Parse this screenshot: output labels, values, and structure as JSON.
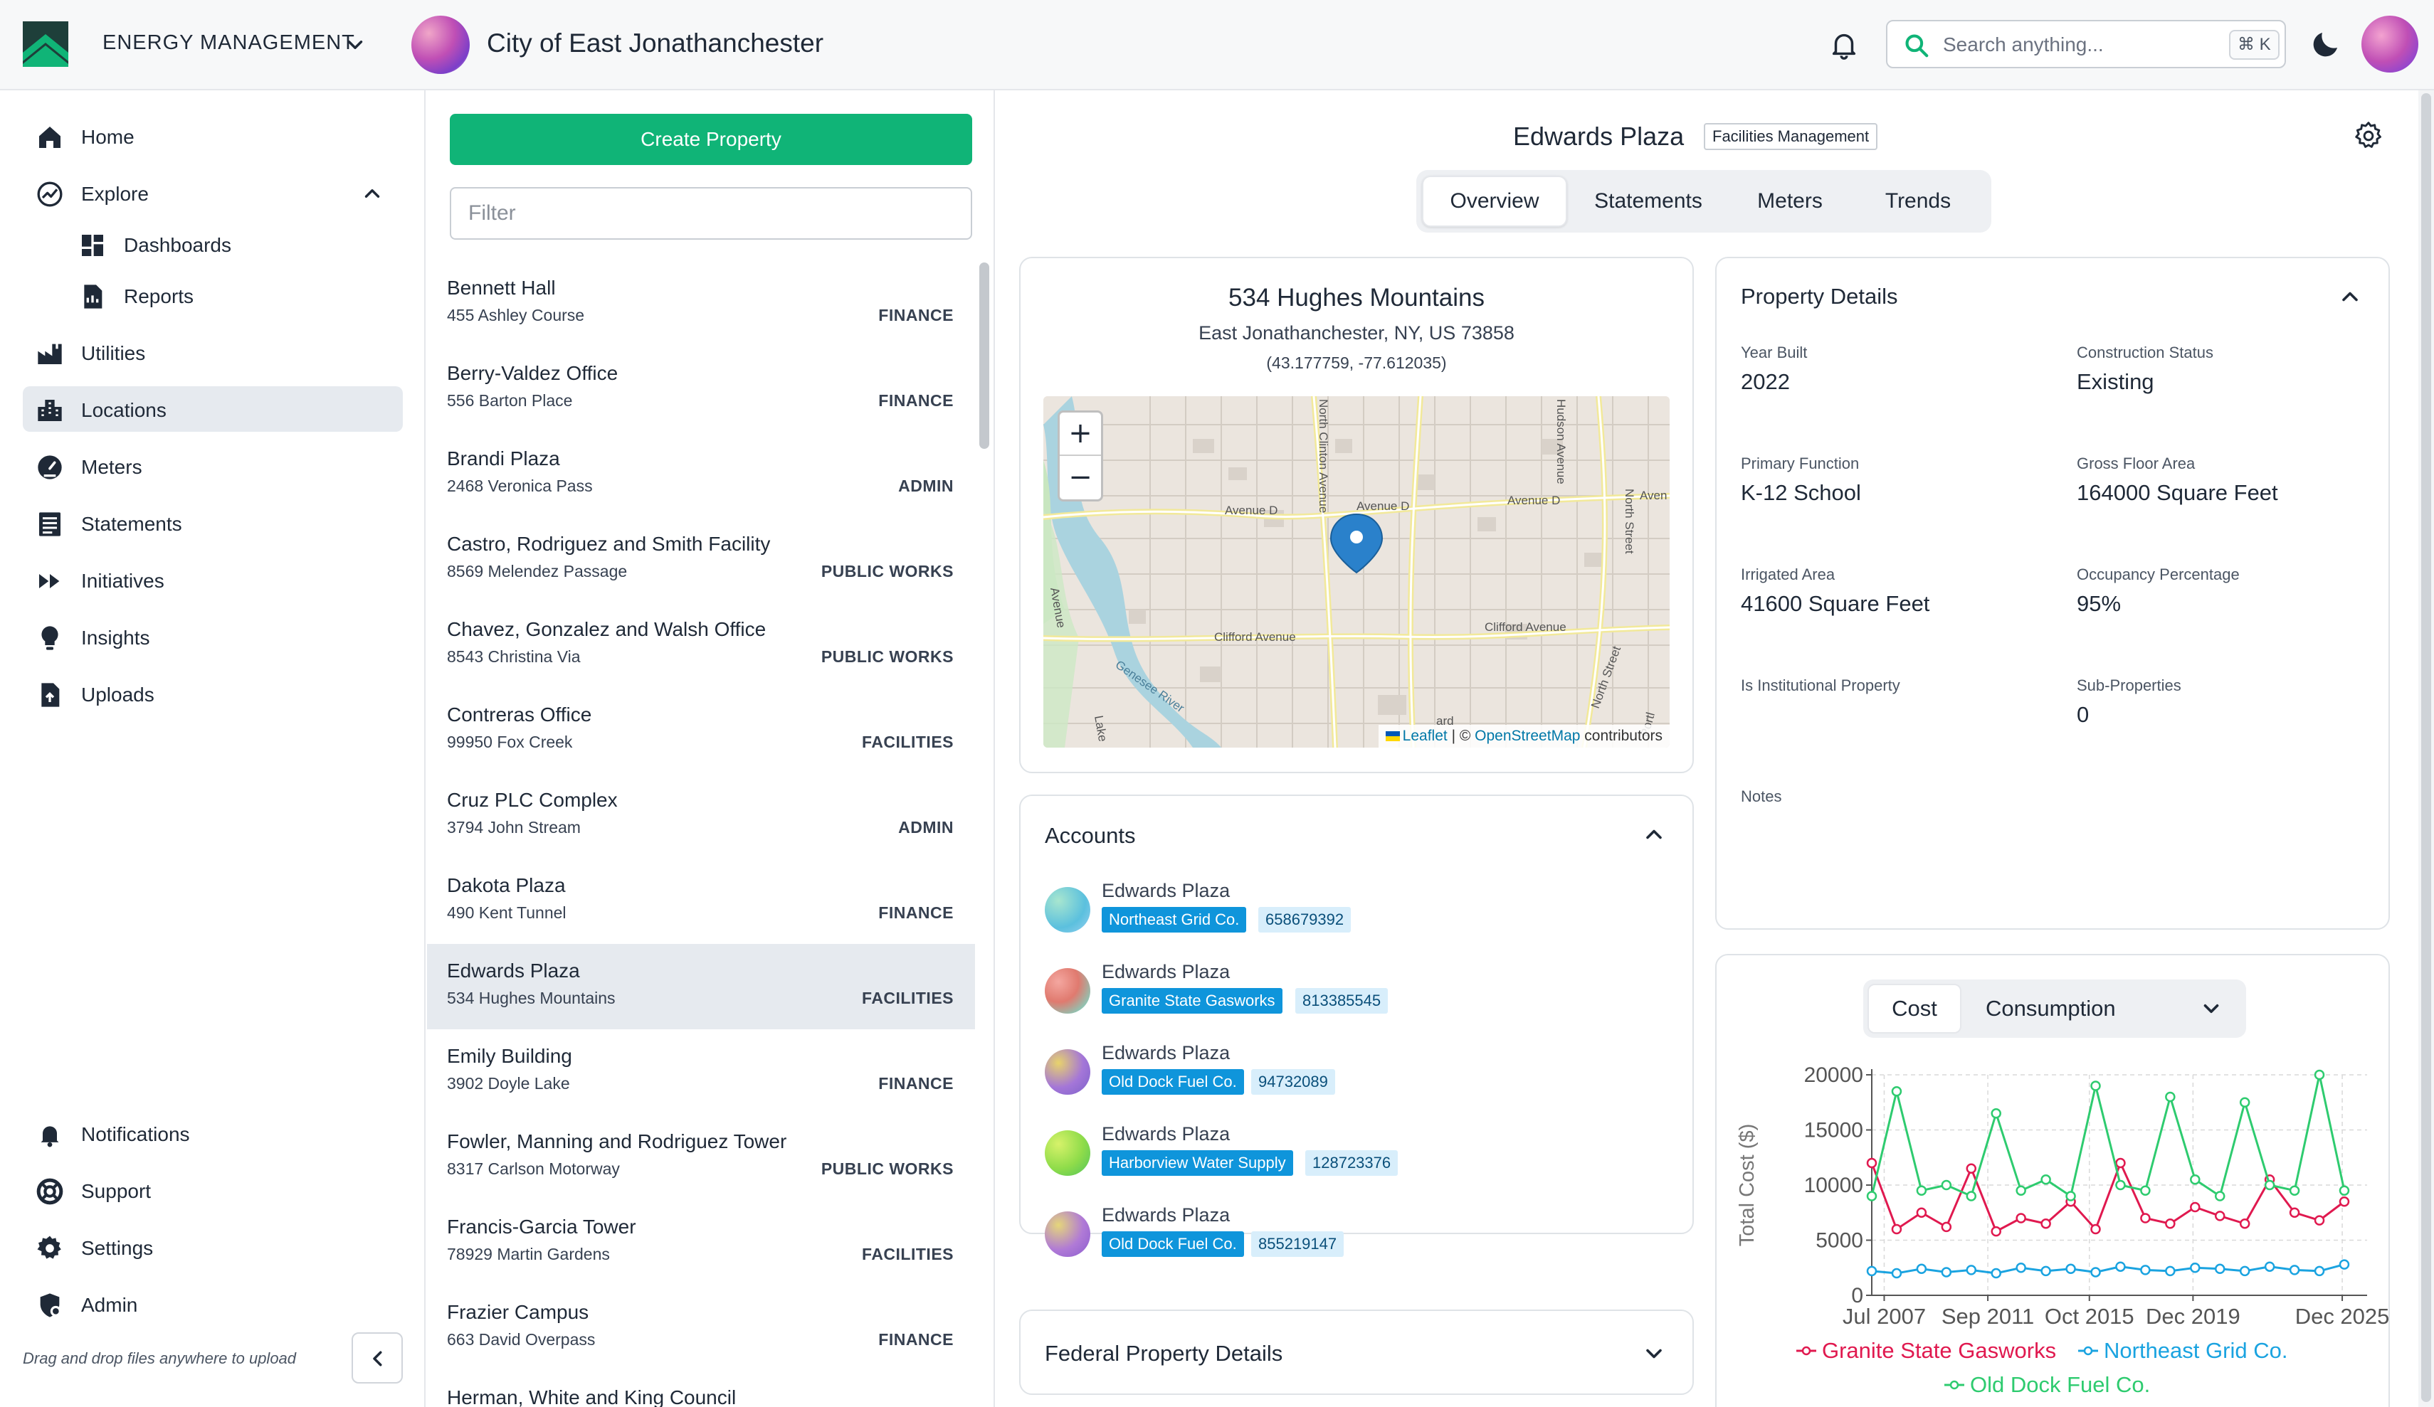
{
  "header": {
    "app_name": "ENERGY MANAGEMENT",
    "org_name": "City of East Jonathanchester",
    "search_placeholder": "Search anything...",
    "search_shortcut": "⌘ K"
  },
  "nav": {
    "home": "Home",
    "explore": "Explore",
    "dashboards": "Dashboards",
    "reports": "Reports",
    "utilities": "Utilities",
    "locations": "Locations",
    "meters": "Meters",
    "statements": "Statements",
    "initiatives": "Initiatives",
    "insights": "Insights",
    "uploads": "Uploads",
    "notifications": "Notifications",
    "support": "Support",
    "settings": "Settings",
    "admin": "Admin",
    "drag_hint": "Drag and drop files anywhere to upload"
  },
  "list": {
    "create_label": "Create Property",
    "filter_placeholder": "Filter",
    "items": [
      {
        "name": "Bennett Hall",
        "address": "455 Ashley Course",
        "dept": "FINANCE"
      },
      {
        "name": "Berry-Valdez Office",
        "address": "556 Barton Place",
        "dept": "FINANCE"
      },
      {
        "name": "Brandi Plaza",
        "address": "2468 Veronica Pass",
        "dept": "ADMIN"
      },
      {
        "name": "Castro, Rodriguez and Smith Facility",
        "address": "8569 Melendez Passage",
        "dept": "PUBLIC WORKS"
      },
      {
        "name": "Chavez, Gonzalez and Walsh Office",
        "address": "8543 Christina Via",
        "dept": "PUBLIC WORKS"
      },
      {
        "name": "Contreras Office",
        "address": "99950 Fox Creek",
        "dept": "FACILITIES"
      },
      {
        "name": "Cruz PLC Complex",
        "address": "3794 John Stream",
        "dept": "ADMIN"
      },
      {
        "name": "Dakota Plaza",
        "address": "490 Kent Tunnel",
        "dept": "FINANCE"
      },
      {
        "name": "Edwards Plaza",
        "address": "534 Hughes Mountains",
        "dept": "FACILITIES"
      },
      {
        "name": "Emily Building",
        "address": "3902 Doyle Lake",
        "dept": "FINANCE"
      },
      {
        "name": "Fowler, Manning and Rodriguez Tower",
        "address": "8317 Carlson Motorway",
        "dept": "PUBLIC WORKS"
      },
      {
        "name": "Francis-Garcia Tower",
        "address": "78929 Martin Gardens",
        "dept": "FACILITIES"
      },
      {
        "name": "Frazier Campus",
        "address": "663 David Overpass",
        "dept": "FINANCE"
      },
      {
        "name": "Herman, White and King Council",
        "address": "",
        "dept": ""
      }
    ]
  },
  "property": {
    "title": "Edwards Plaza",
    "tag": "Facilities Management",
    "tabs": [
      "Overview",
      "Statements",
      "Meters",
      "Trends"
    ],
    "address_line1": "534 Hughes Mountains",
    "address_line2": "East Jonathanchester, NY, US 73858",
    "coords": "(43.177759, -77.612035)"
  },
  "map": {
    "zoom_in": "+",
    "zoom_out": "−",
    "attribution_leaflet": "Leaflet",
    "attribution_sep": " | © ",
    "attribution_osm": "OpenStreetMap",
    "attribution_tail": " contributors",
    "street_labels": [
      "Avenue D",
      "Avenue D",
      "Avenue D",
      "Clifford Avenue",
      "Clifford Avenue",
      "North Clinton Avenue",
      "Hudson Avenue",
      "North Street",
      "North Street",
      "Genesee River",
      "Avenue",
      "Aven",
      "Lake",
      "Portl",
      "ard"
    ]
  },
  "accounts": {
    "title": "Accounts",
    "items": [
      {
        "name": "Edwards Plaza",
        "provider": "Northeast Grid Co.",
        "number": "658679392"
      },
      {
        "name": "Edwards Plaza",
        "provider": "Granite State Gasworks",
        "number": "813385545"
      },
      {
        "name": "Edwards Plaza",
        "provider": "Old Dock Fuel Co.",
        "number": "94732089"
      },
      {
        "name": "Edwards Plaza",
        "provider": "Harborview Water Supply",
        "number": "128723376"
      },
      {
        "name": "Edwards Plaza",
        "provider": "Old Dock Fuel Co.",
        "number": "855219147"
      }
    ]
  },
  "federal": {
    "title": "Federal Property Details"
  },
  "details": {
    "title": "Property Details",
    "fields": [
      {
        "label": "Year Built",
        "value": "2022"
      },
      {
        "label": "Construction Status",
        "value": "Existing"
      },
      {
        "label": "Primary Function",
        "value": "K-12 School"
      },
      {
        "label": "Gross Floor Area",
        "value": "164000 Square Feet"
      },
      {
        "label": "Irrigated Area",
        "value": "41600 Square Feet"
      },
      {
        "label": "Occupancy Percentage",
        "value": "95%"
      },
      {
        "label": "Is Institutional Property",
        "value": ""
      },
      {
        "label": "Sub-Properties",
        "value": "0"
      },
      {
        "label": "Notes",
        "value": ""
      }
    ]
  },
  "chart_toggle": {
    "cost": "Cost",
    "consumption": "Consumption"
  },
  "chart_data": {
    "type": "line",
    "ylabel": "Total Cost ($)",
    "xlabel": "",
    "ylim": [
      0,
      20000
    ],
    "y_ticks": [
      0,
      5000,
      10000,
      15000,
      20000
    ],
    "y_tick_labels": [
      "0",
      "5000",
      "10000",
      "15000",
      "20000"
    ],
    "x_range": [
      "2007-01",
      "2026-12"
    ],
    "x_ticks": [
      "2007-07",
      "2011-09",
      "2015-10",
      "2019-12",
      "2025-12"
    ],
    "x_tick_labels": [
      "Jul 2007",
      "Sep 2011",
      "Oct 2015",
      "Dec 2019",
      "Dec 2025"
    ],
    "grid": true,
    "legend": "bottom",
    "series": [
      {
        "name": "Granite State Gasworks",
        "color": "#e0194f",
        "x": [
          "2007-01",
          "2008-01",
          "2009-01",
          "2010-01",
          "2011-01",
          "2012-01",
          "2013-01",
          "2014-01",
          "2015-01",
          "2016-01",
          "2017-01",
          "2018-01",
          "2019-01",
          "2020-01",
          "2021-01",
          "2022-01",
          "2023-01",
          "2024-01",
          "2025-01",
          "2026-01"
        ],
        "values": [
          12000,
          6000,
          7500,
          6200,
          11500,
          5800,
          7000,
          6500,
          8500,
          6000,
          12000,
          7000,
          6500,
          8000,
          7200,
          6500,
          10500,
          7500,
          6800,
          8500
        ]
      },
      {
        "name": "Northeast Grid Co.",
        "color": "#1aa3e0",
        "x": [
          "2007-01",
          "2008-01",
          "2009-01",
          "2010-01",
          "2011-01",
          "2012-01",
          "2013-01",
          "2014-01",
          "2015-01",
          "2016-01",
          "2017-01",
          "2018-01",
          "2019-01",
          "2020-01",
          "2021-01",
          "2022-01",
          "2023-01",
          "2024-01",
          "2025-01",
          "2026-01"
        ],
        "values": [
          2200,
          2000,
          2400,
          2100,
          2300,
          2000,
          2500,
          2200,
          2400,
          2100,
          2600,
          2300,
          2200,
          2500,
          2400,
          2200,
          2600,
          2300,
          2200,
          2800
        ]
      },
      {
        "name": "Old Dock Fuel Co.",
        "color": "#2ecb6f",
        "x": [
          "2007-01",
          "2008-01",
          "2009-01",
          "2010-01",
          "2011-01",
          "2012-01",
          "2013-01",
          "2014-01",
          "2015-01",
          "2016-01",
          "2017-01",
          "2018-01",
          "2019-01",
          "2020-01",
          "2021-01",
          "2022-01",
          "2023-01",
          "2024-01",
          "2025-01",
          "2026-01"
        ],
        "values": [
          9000,
          18500,
          9500,
          10000,
          9000,
          16500,
          9500,
          10500,
          9000,
          19000,
          10000,
          9500,
          18000,
          10500,
          9000,
          17500,
          10000,
          9500,
          20000,
          9500
        ]
      }
    ]
  }
}
